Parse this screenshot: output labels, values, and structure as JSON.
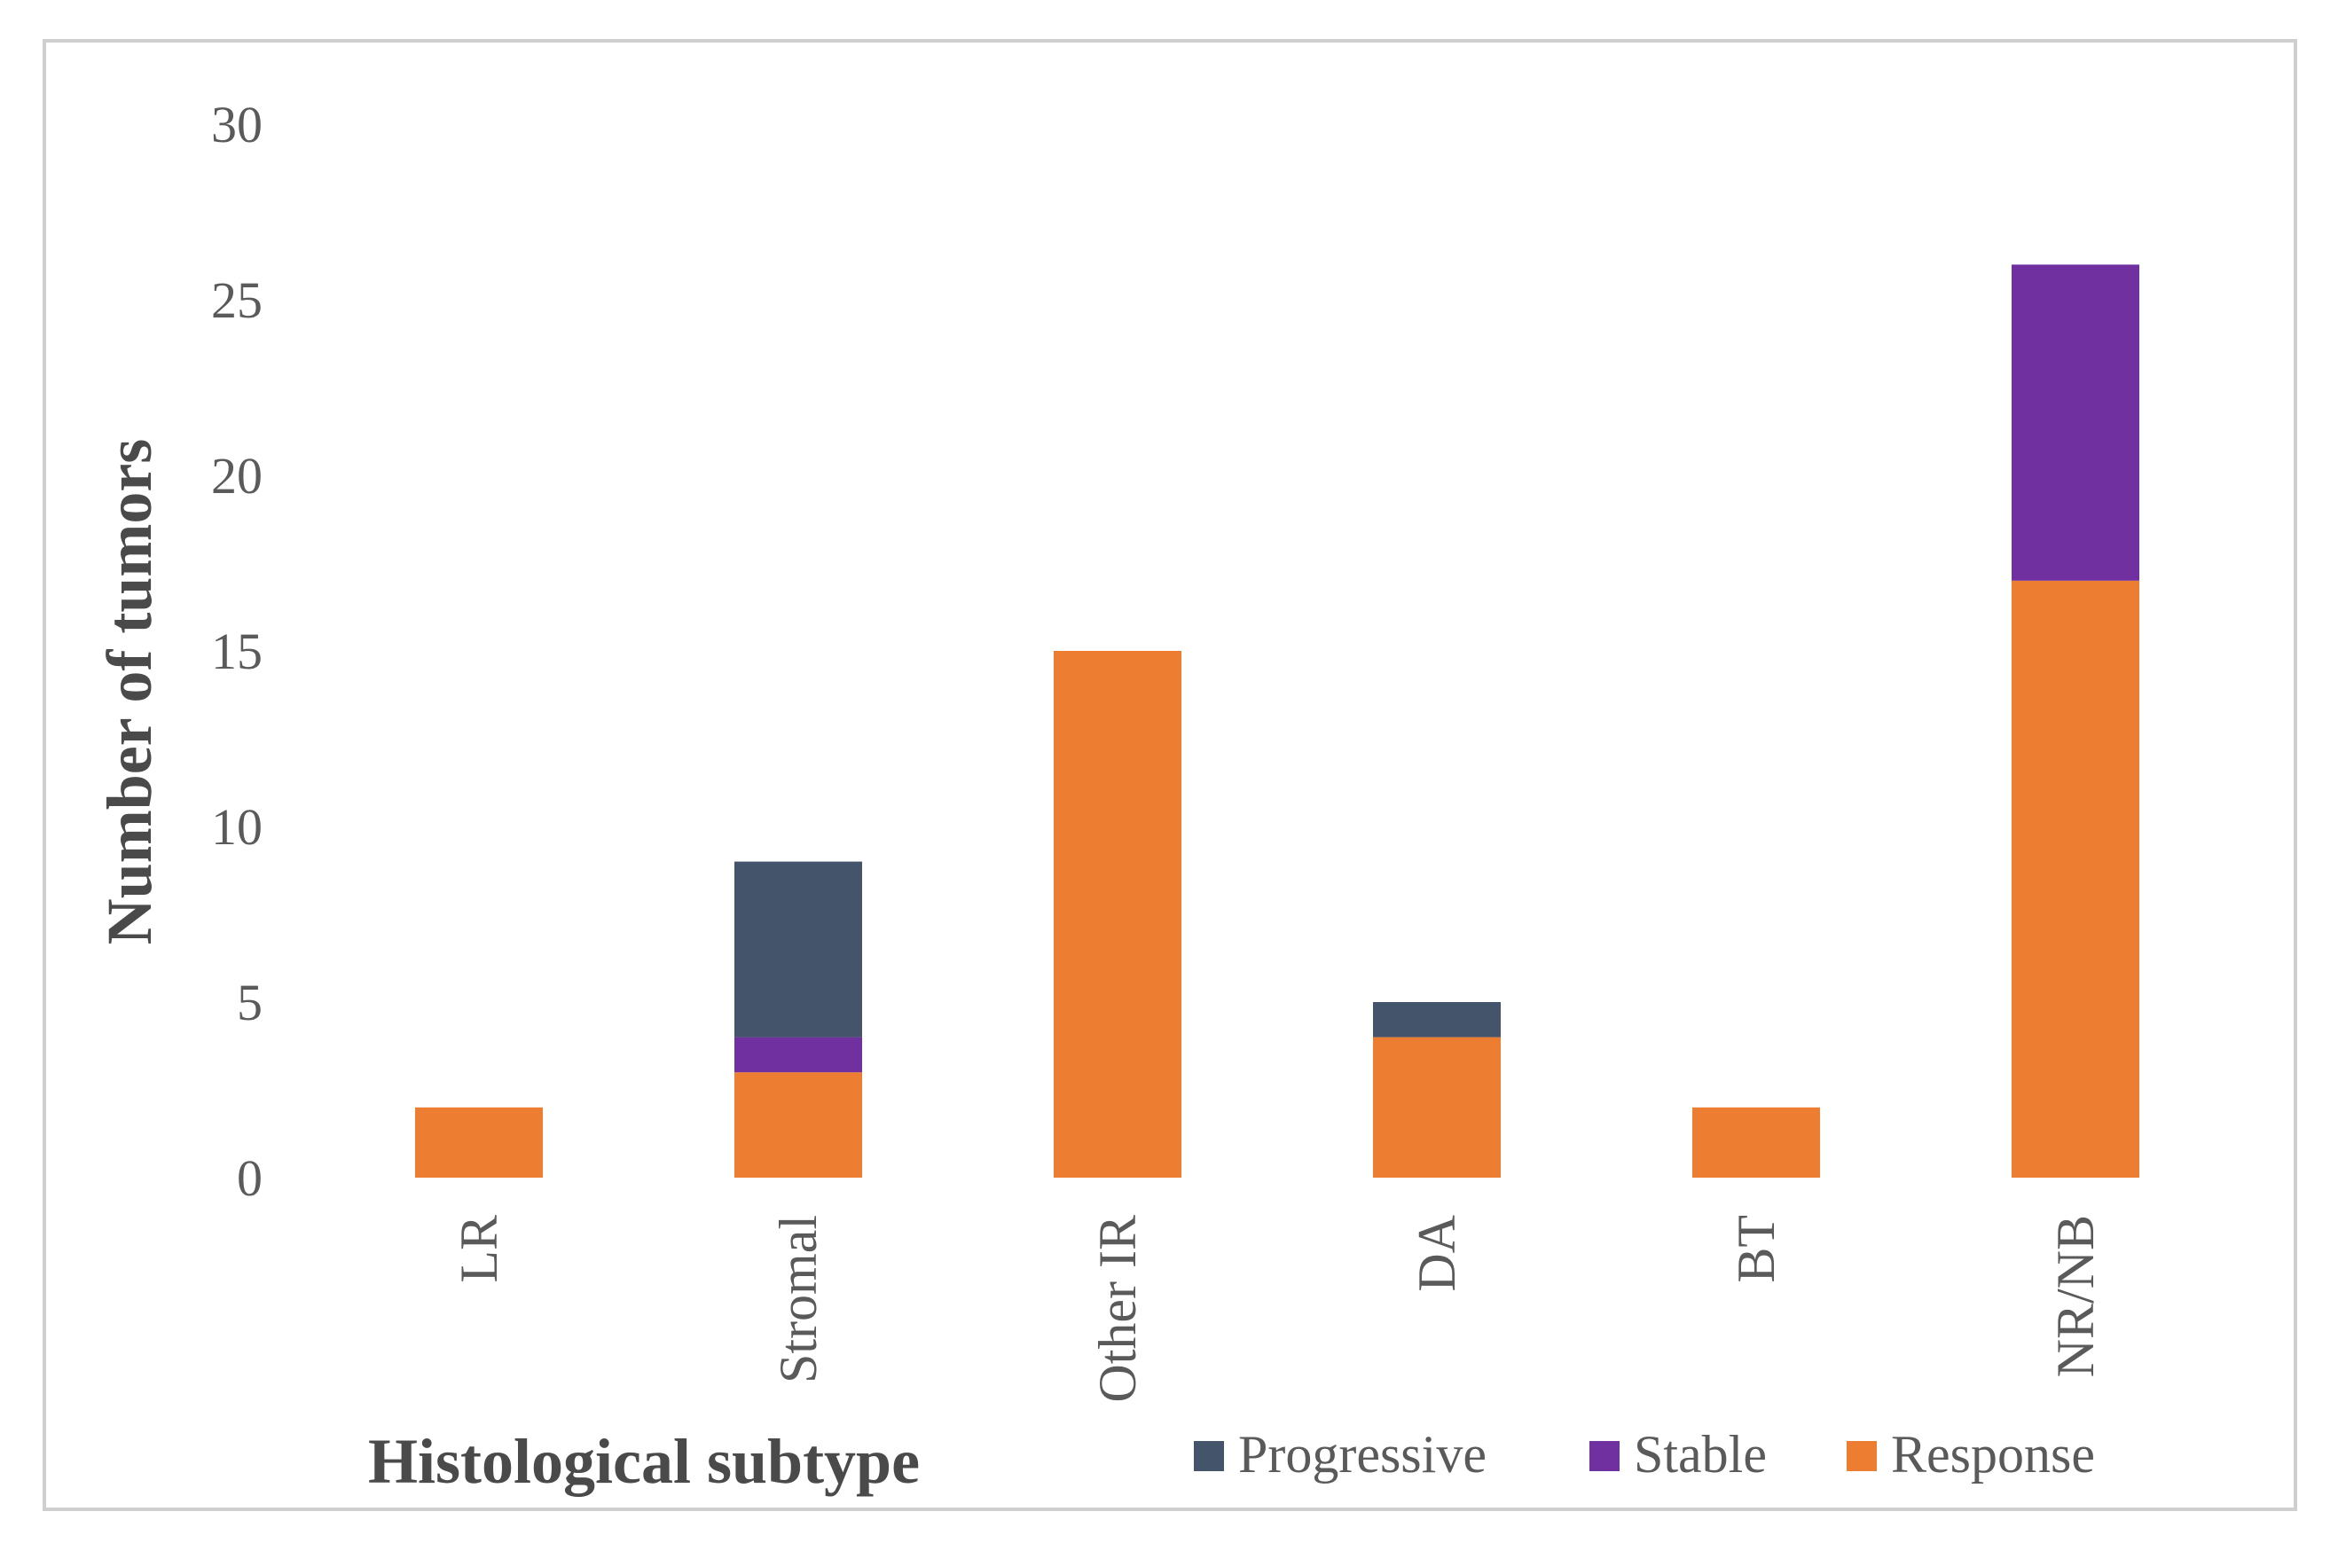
{
  "chart_data": {
    "type": "bar",
    "stacked": true,
    "categories": [
      "LR",
      "Stromal",
      "Other IR",
      "DA",
      "BT",
      "NR/NB"
    ],
    "series": [
      {
        "name": "Response",
        "color": "#ED7D31",
        "values": [
          2,
          3,
          15,
          4,
          2,
          17
        ]
      },
      {
        "name": "Stable",
        "color": "#7030A0",
        "values": [
          0,
          1,
          0,
          0,
          0,
          9
        ]
      },
      {
        "name": "Progressive",
        "color": "#44546A",
        "values": [
          0,
          5,
          0,
          1,
          0,
          0
        ]
      }
    ],
    "xlabel": "Histological subtype",
    "ylabel": "Number of tumors",
    "ylim": [
      0,
      30
    ],
    "yticks": [
      0,
      5,
      10,
      15,
      20,
      25,
      30
    ],
    "grid": false,
    "legend": {
      "placement": "bottom-right",
      "order": [
        "Progressive",
        "Stable",
        "Response"
      ]
    }
  }
}
